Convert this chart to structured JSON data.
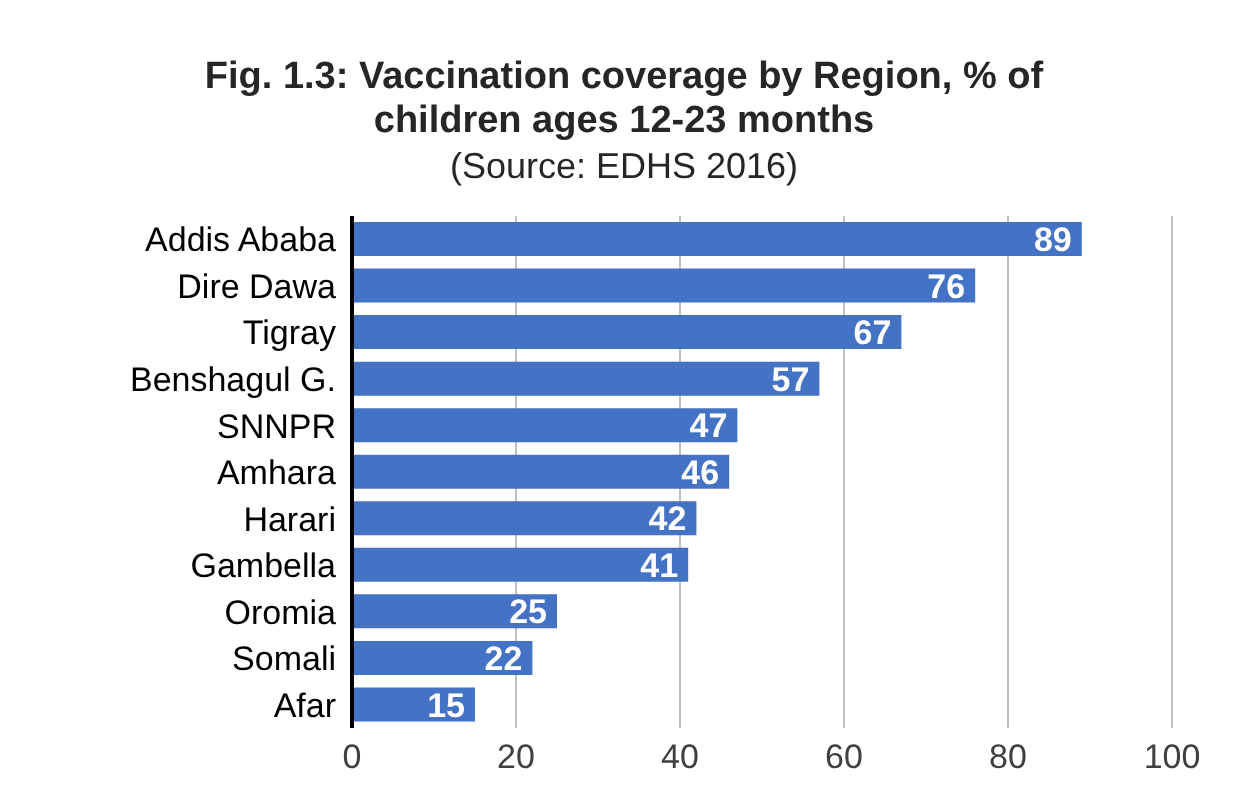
{
  "chart_data": {
    "type": "bar",
    "orientation": "horizontal",
    "title": "Fig. 1.3: Vaccination coverage by Region, % of children ages 12-23 months",
    "subtitle": "(Source: EDHS 2016)",
    "categories": [
      "Addis Ababa",
      "Dire Dawa",
      "Tigray",
      "Benshagul G.",
      "SNNPR",
      "Amhara",
      "Harari",
      "Gambella",
      "Oromia",
      "Somali",
      "Afar"
    ],
    "values": [
      89,
      76,
      67,
      57,
      47,
      46,
      42,
      41,
      25,
      22,
      15
    ],
    "color": "#4472c4",
    "xlim": [
      0,
      100
    ],
    "xticks": [
      0,
      20,
      40,
      60,
      80,
      100
    ],
    "grid": "x",
    "data_labels": true
  }
}
